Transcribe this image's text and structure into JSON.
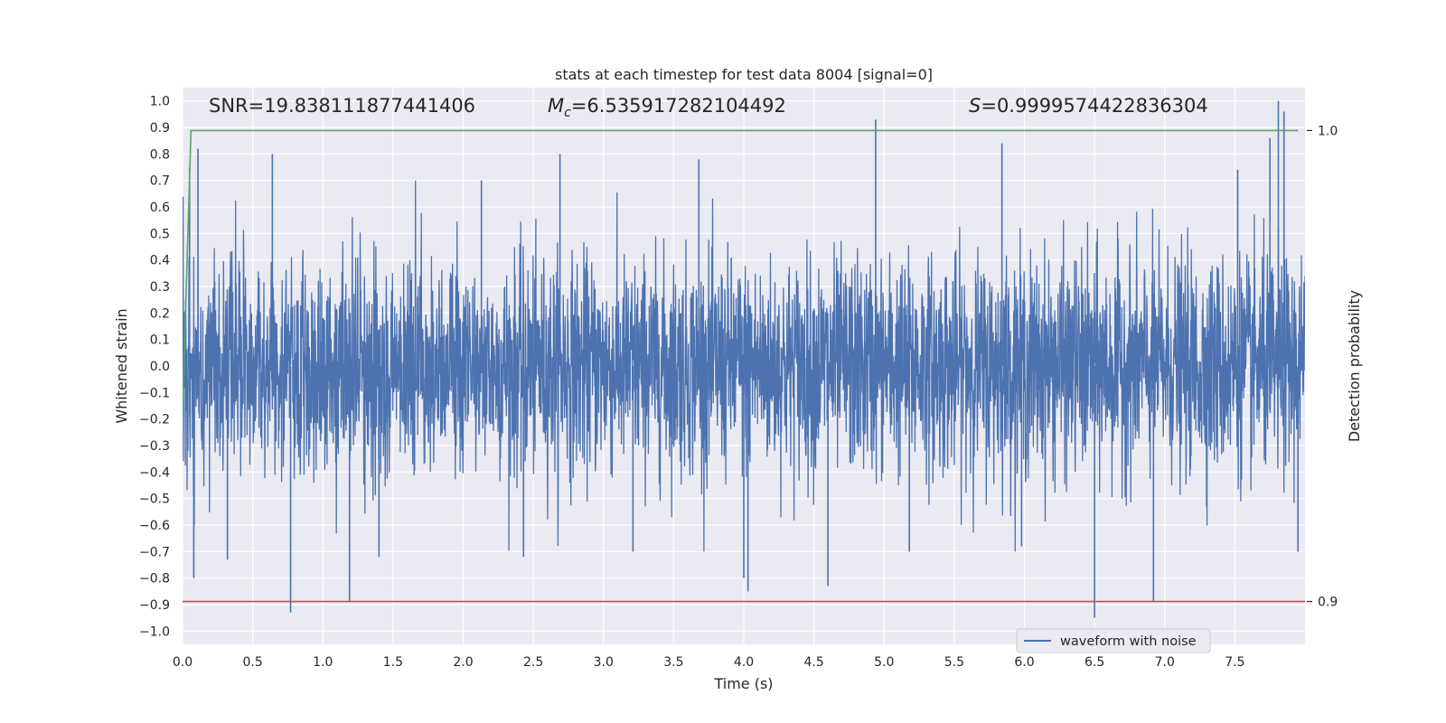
{
  "chart_data": {
    "type": "line",
    "title": "stats at each timestep for test data 8004 [signal=0]",
    "xlabel": "Time (s)",
    "ylabel": "Whitened strain",
    "y2label": "Detection probability",
    "xlim": [
      0.0,
      8.0
    ],
    "ylim": [
      -1.05,
      1.05
    ],
    "y2lim": [
      0.8909,
      1.0091
    ],
    "x_ticks": [
      "0.0",
      "0.5",
      "1.0",
      "1.5",
      "2.0",
      "2.5",
      "3.0",
      "3.5",
      "4.0",
      "4.5",
      "5.0",
      "5.5",
      "6.0",
      "6.5",
      "7.0",
      "7.5"
    ],
    "y_ticks": [
      "1.0",
      "0.9",
      "0.8",
      "0.7",
      "0.6",
      "0.5",
      "0.4",
      "0.3",
      "0.2",
      "0.1",
      "0.0",
      "−0.1",
      "−0.2",
      "−0.3",
      "−0.4",
      "−0.5",
      "−0.6",
      "−0.7",
      "−0.8",
      "−0.9",
      "−1.0"
    ],
    "y2_ticks": [
      "1.0",
      "0.9"
    ],
    "annotations": {
      "snr": "SNR=19.838111877441406",
      "mc_symbol": "M",
      "mc_subscript": "c",
      "mc_value": "=6.535917282104492",
      "s_symbol": "S",
      "s_value": "=0.9999574422836304"
    },
    "legend": {
      "placement": "lower-center-right",
      "entries": [
        "waveform with noise"
      ]
    },
    "grid": true,
    "series": [
      {
        "name": "waveform with noise",
        "color": "#4c72b0",
        "axis": "left",
        "description": "noisy whitened strain, 4096 Hz sampling over 0-8 s, typical envelope about ±0.5 with spikes",
        "x_start": 0.0,
        "x_end": 8.0,
        "envelope": 0.45,
        "spikes": [
          {
            "x": 0.05,
            "y": 0.75
          },
          {
            "x": 0.11,
            "y": 0.82
          },
          {
            "x": 0.08,
            "y": -0.8
          },
          {
            "x": 0.77,
            "y": -0.93
          },
          {
            "x": 0.64,
            "y": 0.8
          },
          {
            "x": 1.19,
            "y": -0.89
          },
          {
            "x": 0.32,
            "y": -0.73
          },
          {
            "x": 1.4,
            "y": -0.72
          },
          {
            "x": 2.69,
            "y": 0.8
          },
          {
            "x": 3.68,
            "y": 0.78
          },
          {
            "x": 4.0,
            "y": -0.8
          },
          {
            "x": 4.03,
            "y": -0.85
          },
          {
            "x": 4.6,
            "y": -0.83
          },
          {
            "x": 4.94,
            "y": 0.93
          },
          {
            "x": 5.84,
            "y": 0.84
          },
          {
            "x": 5.98,
            "y": -0.68
          },
          {
            "x": 6.5,
            "y": -0.95
          },
          {
            "x": 6.92,
            "y": -0.89
          },
          {
            "x": 7.81,
            "y": 1.0
          },
          {
            "x": 7.85,
            "y": 0.96
          },
          {
            "x": 7.75,
            "y": 0.86
          },
          {
            "x": 7.95,
            "y": -0.7
          },
          {
            "x": 3.21,
            "y": -0.7
          },
          {
            "x": 2.13,
            "y": 0.7
          },
          {
            "x": 2.43,
            "y": -0.72
          },
          {
            "x": 5.18,
            "y": -0.7
          },
          {
            "x": 7.52,
            "y": 0.74
          }
        ]
      },
      {
        "name": "detection probability",
        "color": "#55a868",
        "axis": "right",
        "x": [
          0.0,
          0.06,
          7.95
        ],
        "y": [
          0.94,
          1.0,
          1.0
        ]
      },
      {
        "name": "threshold",
        "color": "#c44e52",
        "axis": "right",
        "x": [
          0.0,
          8.0
        ],
        "y": [
          0.9,
          0.9
        ]
      }
    ]
  }
}
